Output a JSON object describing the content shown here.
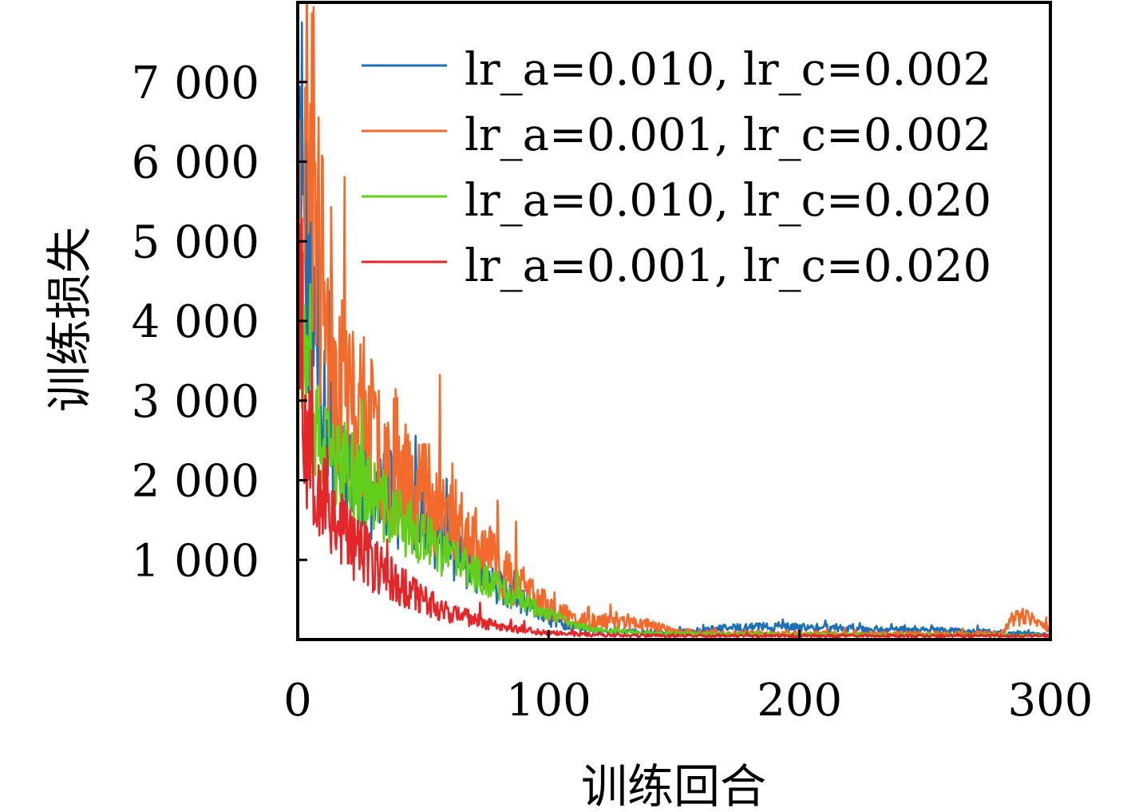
{
  "chart_data": {
    "type": "line",
    "xlabel": "训练回合",
    "ylabel": "训练损失",
    "xlim": [
      0,
      300
    ],
    "ylim": [
      0,
      8000
    ],
    "x_ticks": [
      {
        "value": 0,
        "label": "0"
      },
      {
        "value": 100,
        "label": "100"
      },
      {
        "value": 200,
        "label": "200"
      },
      {
        "value": 300,
        "label": "300"
      }
    ],
    "y_ticks": [
      {
        "value": 1000,
        "label": "1 000"
      },
      {
        "value": 2000,
        "label": "2 000"
      },
      {
        "value": 3000,
        "label": "3 000"
      },
      {
        "value": 4000,
        "label": "4 000"
      },
      {
        "value": 5000,
        "label": "5 000"
      },
      {
        "value": 6000,
        "label": "6 000"
      },
      {
        "value": 7000,
        "label": "7 000"
      }
    ],
    "legend_position": "top-right",
    "grid": false,
    "series": [
      {
        "name": "lr_a=0.010, lr_c=0.002",
        "color": "#1f6fb4",
        "anchors": [
          [
            0,
            4200
          ],
          [
            1,
            6950
          ],
          [
            2,
            6200
          ],
          [
            4,
            4600
          ],
          [
            7,
            3900
          ],
          [
            10,
            3200
          ],
          [
            15,
            2600
          ],
          [
            20,
            2200
          ],
          [
            30,
            1900
          ],
          [
            40,
            1700
          ],
          [
            50,
            1450
          ],
          [
            60,
            1200
          ],
          [
            70,
            900
          ],
          [
            80,
            650
          ],
          [
            90,
            450
          ],
          [
            100,
            250
          ],
          [
            110,
            150
          ],
          [
            120,
            110
          ],
          [
            130,
            100
          ],
          [
            150,
            85
          ],
          [
            170,
            140
          ],
          [
            180,
            160
          ],
          [
            200,
            150
          ],
          [
            220,
            140
          ],
          [
            240,
            120
          ],
          [
            260,
            110
          ],
          [
            280,
            90
          ],
          [
            290,
            80
          ],
          [
            300,
            60
          ]
        ],
        "noise": 0.35,
        "seed": 11
      },
      {
        "name": "lr_a=0.001, lr_c=0.002",
        "color": "#f36a2d",
        "anchors": [
          [
            0,
            5300
          ],
          [
            2,
            6000
          ],
          [
            4,
            6500
          ],
          [
            6,
            6000
          ],
          [
            8,
            4900
          ],
          [
            10,
            4300
          ],
          [
            15,
            3600
          ],
          [
            20,
            3000
          ],
          [
            30,
            2500
          ],
          [
            40,
            2200
          ],
          [
            50,
            1900
          ],
          [
            60,
            1600
          ],
          [
            70,
            1200
          ],
          [
            80,
            900
          ],
          [
            90,
            650
          ],
          [
            100,
            400
          ],
          [
            110,
            250
          ],
          [
            120,
            220
          ],
          [
            130,
            220
          ],
          [
            140,
            190
          ],
          [
            150,
            100
          ],
          [
            170,
            80
          ],
          [
            200,
            75
          ],
          [
            240,
            70
          ],
          [
            280,
            75
          ],
          [
            285,
            250
          ],
          [
            290,
            280
          ],
          [
            295,
            200
          ],
          [
            300,
            150
          ]
        ],
        "noise": 0.42,
        "seed": 23
      },
      {
        "name": "lr_a=0.010, lr_c=0.020",
        "color": "#62d01a",
        "anchors": [
          [
            0,
            4400
          ],
          [
            2,
            3700
          ],
          [
            4,
            3000
          ],
          [
            7,
            2600
          ],
          [
            10,
            2350
          ],
          [
            20,
            2100
          ],
          [
            30,
            1800
          ],
          [
            40,
            1500
          ],
          [
            50,
            1250
          ],
          [
            60,
            1050
          ],
          [
            70,
            850
          ],
          [
            80,
            650
          ],
          [
            90,
            480
          ],
          [
            100,
            320
          ],
          [
            110,
            180
          ],
          [
            120,
            120
          ],
          [
            140,
            80
          ],
          [
            180,
            65
          ],
          [
            220,
            60
          ],
          [
            260,
            55
          ],
          [
            300,
            50
          ]
        ],
        "noise": 0.28,
        "seed": 37
      },
      {
        "name": "lr_a=0.001, lr_c=0.020",
        "color": "#e3262a",
        "anchors": [
          [
            0,
            5000
          ],
          [
            1,
            4200
          ],
          [
            2,
            3000
          ],
          [
            4,
            2500
          ],
          [
            8,
            2100
          ],
          [
            12,
            1700
          ],
          [
            20,
            1300
          ],
          [
            30,
            950
          ],
          [
            40,
            700
          ],
          [
            50,
            500
          ],
          [
            60,
            350
          ],
          [
            70,
            250
          ],
          [
            80,
            170
          ],
          [
            90,
            120
          ],
          [
            100,
            80
          ],
          [
            130,
            50
          ],
          [
            200,
            45
          ],
          [
            260,
            45
          ],
          [
            300,
            45
          ]
        ],
        "noise": 0.4,
        "seed": 53
      }
    ]
  }
}
